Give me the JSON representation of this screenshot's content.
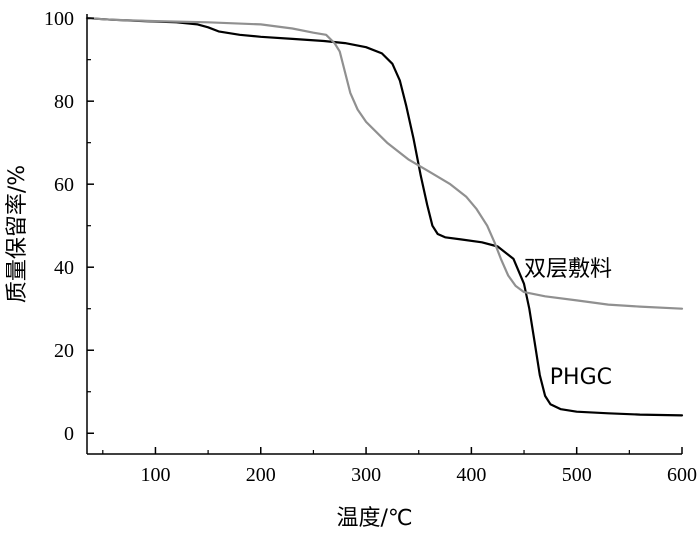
{
  "chart_data": {
    "type": "line",
    "xlabel": "温度/℃",
    "ylabel": "质量保留率/%",
    "xlim": [
      35,
      600
    ],
    "ylim": [
      -5,
      101
    ],
    "x_ticks": [
      100,
      200,
      300,
      400,
      500,
      600
    ],
    "y_ticks": [
      0,
      20,
      40,
      60,
      80,
      100
    ],
    "grid": false,
    "series": [
      {
        "name": "PHGC",
        "color": "#000000",
        "points": [
          [
            35,
            100
          ],
          [
            60,
            99.6
          ],
          [
            90,
            99.3
          ],
          [
            120,
            99
          ],
          [
            140,
            98.5
          ],
          [
            150,
            97.8
          ],
          [
            160,
            96.8
          ],
          [
            180,
            96
          ],
          [
            200,
            95.5
          ],
          [
            230,
            95
          ],
          [
            260,
            94.5
          ],
          [
            280,
            94
          ],
          [
            300,
            93
          ],
          [
            315,
            91.5
          ],
          [
            325,
            89
          ],
          [
            332,
            85
          ],
          [
            338,
            79
          ],
          [
            345,
            71
          ],
          [
            352,
            62
          ],
          [
            358,
            55
          ],
          [
            363,
            50
          ],
          [
            368,
            48
          ],
          [
            375,
            47.2
          ],
          [
            390,
            46.7
          ],
          [
            410,
            46
          ],
          [
            425,
            45
          ],
          [
            440,
            42
          ],
          [
            450,
            36
          ],
          [
            455,
            30
          ],
          [
            460,
            22
          ],
          [
            465,
            14
          ],
          [
            470,
            9
          ],
          [
            475,
            7
          ],
          [
            485,
            5.8
          ],
          [
            500,
            5.2
          ],
          [
            530,
            4.8
          ],
          [
            560,
            4.5
          ],
          [
            600,
            4.3
          ]
        ]
      },
      {
        "name": "双层敷料",
        "color": "#909090",
        "points": [
          [
            35,
            100
          ],
          [
            60,
            99.6
          ],
          [
            100,
            99.3
          ],
          [
            150,
            99
          ],
          [
            200,
            98.5
          ],
          [
            230,
            97.5
          ],
          [
            250,
            96.5
          ],
          [
            262,
            96
          ],
          [
            270,
            94
          ],
          [
            275,
            92
          ],
          [
            280,
            87
          ],
          [
            285,
            82
          ],
          [
            292,
            78
          ],
          [
            300,
            75
          ],
          [
            320,
            70
          ],
          [
            340,
            66
          ],
          [
            360,
            63
          ],
          [
            380,
            60
          ],
          [
            395,
            57
          ],
          [
            405,
            54
          ],
          [
            415,
            50
          ],
          [
            422,
            46
          ],
          [
            428,
            42
          ],
          [
            435,
            38
          ],
          [
            442,
            35.5
          ],
          [
            450,
            34
          ],
          [
            470,
            33
          ],
          [
            500,
            32
          ],
          [
            530,
            31
          ],
          [
            560,
            30.5
          ],
          [
            600,
            30
          ]
        ]
      }
    ]
  }
}
